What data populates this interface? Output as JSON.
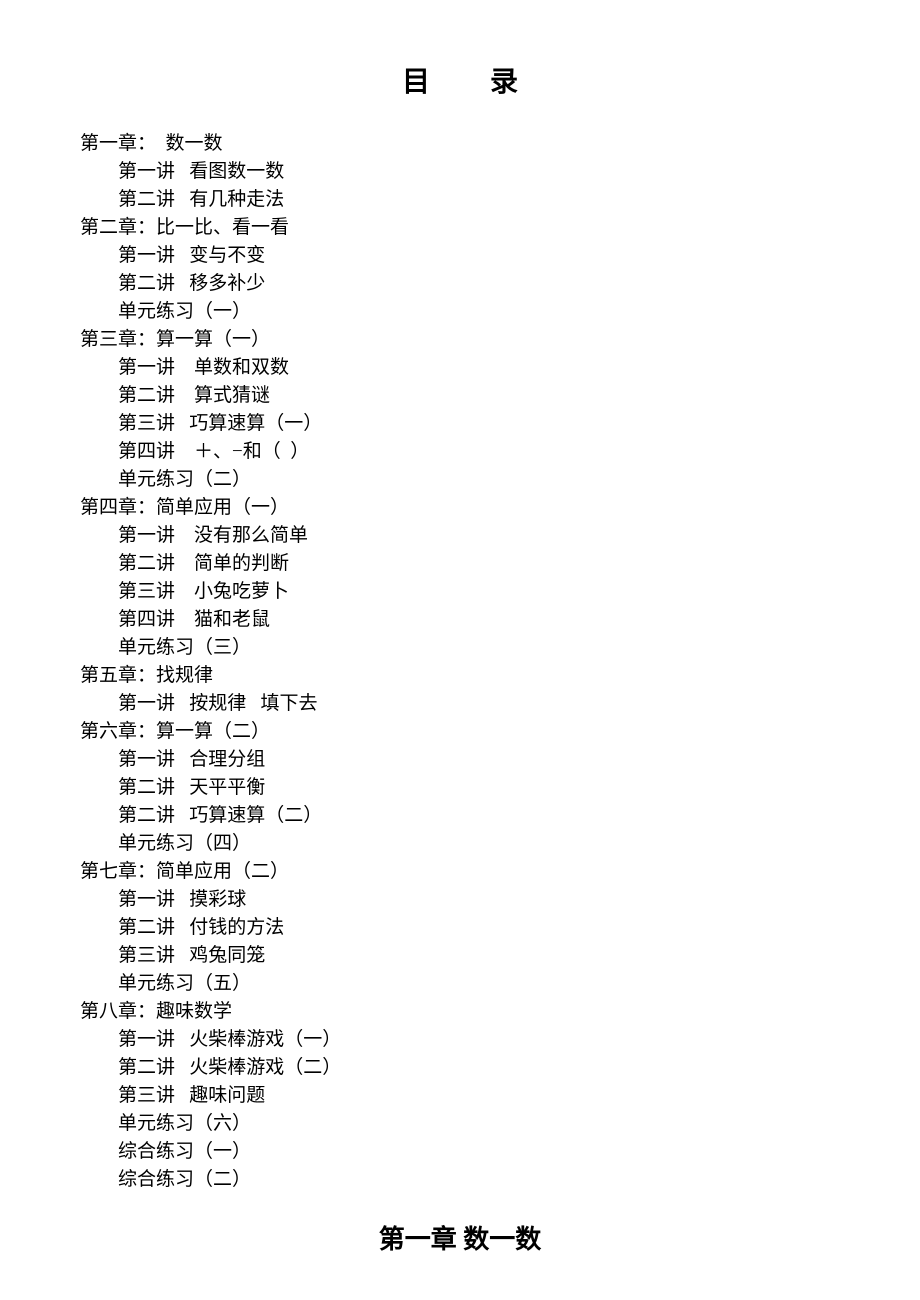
{
  "title": "目录",
  "lines": [
    {
      "cls": "chapter",
      "text": "第一章：  数一数"
    },
    {
      "cls": "lecture",
      "text": "第一讲   看图数一数"
    },
    {
      "cls": "lecture",
      "text": "第二讲   有几种走法"
    },
    {
      "cls": "chapter",
      "text": "第二章：比一比、看一看"
    },
    {
      "cls": "lecture",
      "text": "第一讲   变与不变"
    },
    {
      "cls": "lecture",
      "text": "第二讲   移多补少"
    },
    {
      "cls": "lecture",
      "text": "单元练习（一）"
    },
    {
      "cls": "chapter",
      "text": "第三章：算一算（一）"
    },
    {
      "cls": "lecture",
      "text": "第一讲    单数和双数"
    },
    {
      "cls": "lecture",
      "text": "第二讲    算式猜谜"
    },
    {
      "cls": "lecture",
      "text": "第三讲   巧算速算（一）"
    },
    {
      "cls": "lecture",
      "text": "第四讲    ＋、−和（  ）"
    },
    {
      "cls": "lecture",
      "text": "单元练习（二）"
    },
    {
      "cls": "chapter",
      "text": "第四章：简单应用（一）"
    },
    {
      "cls": "lecture",
      "text": "第一讲    没有那么简单"
    },
    {
      "cls": "lecture",
      "text": "第二讲    简单的判断"
    },
    {
      "cls": "lecture",
      "text": "第三讲    小兔吃萝卜"
    },
    {
      "cls": "lecture",
      "text": "第四讲    猫和老鼠"
    },
    {
      "cls": "lecture",
      "text": "单元练习（三）"
    },
    {
      "cls": "chapter",
      "text": "第五章：找规律"
    },
    {
      "cls": "lecture",
      "text": "第一讲   按规律   填下去"
    },
    {
      "cls": "chapter",
      "text": "第六章：算一算（二）"
    },
    {
      "cls": "lecture",
      "text": "第一讲   合理分组"
    },
    {
      "cls": "lecture",
      "text": "第二讲   天平平衡"
    },
    {
      "cls": "lecture",
      "text": "第二讲   巧算速算（二）"
    },
    {
      "cls": "lecture",
      "text": "单元练习（四）"
    },
    {
      "cls": "chapter",
      "text": "第七章：简单应用（二）"
    },
    {
      "cls": "lecture",
      "text": "第一讲   摸彩球"
    },
    {
      "cls": "lecture",
      "text": "第二讲   付钱的方法"
    },
    {
      "cls": "lecture",
      "text": "第三讲   鸡兔同笼"
    },
    {
      "cls": "lecture",
      "text": "单元练习（五）"
    },
    {
      "cls": "chapter",
      "text": "第八章：趣味数学"
    },
    {
      "cls": "lecture",
      "text": "第一讲   火柴棒游戏（一）"
    },
    {
      "cls": "lecture",
      "text": "第二讲   火柴棒游戏（二）"
    },
    {
      "cls": "lecture",
      "text": "第三讲   趣味问题"
    },
    {
      "cls": "lecture",
      "text": "单元练习（六）"
    },
    {
      "cls": "lecture",
      "text": "综合练习（一）"
    },
    {
      "cls": "lecture",
      "text": "综合练习（二）"
    }
  ],
  "chapter_heading": "第一章   数一数"
}
